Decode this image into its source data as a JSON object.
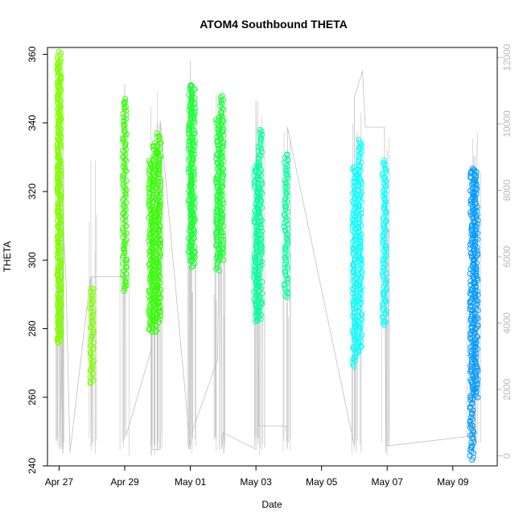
{
  "chart_data": {
    "type": "scatter",
    "title": "ATOM4 Southbound THETA",
    "xlabel": "Date",
    "ylabel": "THETA",
    "x_ticks": [
      "Apr 27",
      "Apr 29",
      "May 01",
      "May 03",
      "May 05",
      "May 07",
      "May 09"
    ],
    "y_ticks": [
      "240",
      "260",
      "280",
      "300",
      "320",
      "340",
      "360"
    ],
    "y2_ticks": [
      "0",
      "2000",
      "4000",
      "6000",
      "8000",
      "10000",
      "12000"
    ],
    "ylim": [
      240,
      362
    ],
    "y2lim": [
      -300,
      12300
    ],
    "xlim": [
      "2013-04-26T15:30",
      "2013-05-10T08:30"
    ],
    "grid": false,
    "legend": "none",
    "colors": {
      "right_axis": "#b8b8b8",
      "secondary_series": "#c0c0c0"
    },
    "series": [
      {
        "color": "#80ff00",
        "segments": [
          {
            "t": "2013-04-27T00:00",
            "ymin": 276,
            "ymax": 361
          },
          {
            "t": "2013-04-27T00:20",
            "ymin": 276,
            "ymax": 358
          },
          {
            "t": "2013-04-28T00:00",
            "ymin": 264,
            "ymax": 292
          }
        ]
      },
      {
        "color": "#33ff00",
        "segments": [
          {
            "t": "2013-04-29T00:00",
            "ymin": 291,
            "ymax": 347
          },
          {
            "t": "2013-04-29T19:00",
            "ymin": 279,
            "ymax": 329
          },
          {
            "t": "2013-04-29T22:00",
            "ymin": 279,
            "ymax": 334
          },
          {
            "t": "2013-04-30T01:00",
            "ymin": 282,
            "ymax": 337
          }
        ]
      },
      {
        "color": "#1aff33",
        "segments": [
          {
            "t": "2013-05-01T00:00",
            "ymin": 300,
            "ymax": 351
          },
          {
            "t": "2013-05-01T02:00",
            "ymin": 298,
            "ymax": 351
          },
          {
            "t": "2013-05-01T20:00",
            "ymin": 297,
            "ymax": 342
          },
          {
            "t": "2013-05-01T23:00",
            "ymin": 300,
            "ymax": 348
          }
        ]
      },
      {
        "color": "#00ff99",
        "segments": [
          {
            "t": "2013-05-03T00:00",
            "ymin": 282,
            "ymax": 328
          },
          {
            "t": "2013-05-03T03:00",
            "ymin": 283,
            "ymax": 338
          },
          {
            "t": "2013-05-03T22:00",
            "ymin": 289,
            "ymax": 331
          }
        ]
      },
      {
        "color": "#00ffff",
        "segments": [
          {
            "t": "2013-05-06T00:00",
            "ymin": 269,
            "ymax": 327
          },
          {
            "t": "2013-05-06T04:00",
            "ymin": 273,
            "ymax": 335
          },
          {
            "t": "2013-05-06T22:00",
            "ymin": 281,
            "ymax": 329
          }
        ]
      },
      {
        "color": "#0099ff",
        "segments": [
          {
            "t": "2013-05-09T14:00",
            "ymin": 242,
            "ymax": 327
          },
          {
            "t": "2013-05-09T17:00",
            "ymin": 260,
            "ymax": 326
          }
        ]
      }
    ],
    "secondary_series": {
      "axis": "right",
      "type": "line",
      "points": [
        [
          "2013-04-27T00:00",
          6000
        ],
        [
          "2013-04-27T00:00",
          11800
        ],
        [
          "2013-04-27T01:00",
          200
        ],
        [
          "2013-04-27T03:00",
          7000
        ],
        [
          "2013-04-27T05:00",
          5400
        ],
        [
          "2013-04-27T08:00",
          100
        ],
        [
          "2013-04-27T23:00",
          5400
        ],
        [
          "2013-04-28T00:00",
          300
        ],
        [
          "2013-04-28T00:00",
          5400
        ],
        [
          "2013-04-29T00:00",
          5400
        ],
        [
          "2013-04-29T00:00",
          11200
        ],
        [
          "2013-04-29T01:00",
          600
        ],
        [
          "2013-04-29T20:00",
          3300
        ],
        [
          "2013-04-29T20:00",
          200
        ],
        [
          "2013-04-30T02:00",
          200
        ],
        [
          "2013-04-30T02:00",
          10100
        ],
        [
          "2013-05-01T00:00",
          200
        ],
        [
          "2013-05-01T00:00",
          11900
        ],
        [
          "2013-05-01T01:00",
          700
        ],
        [
          "2013-05-01T20:00",
          2900
        ],
        [
          "2013-05-01T22:00",
          10800
        ],
        [
          "2013-05-01T23:00",
          200
        ],
        [
          "2013-05-02T00:00",
          700
        ],
        [
          "2013-05-03T00:00",
          200
        ],
        [
          "2013-05-03T00:00",
          10700
        ],
        [
          "2013-05-03T02:00",
          900
        ],
        [
          "2013-05-03T22:00",
          900
        ],
        [
          "2013-05-03T23:00",
          200
        ],
        [
          "2013-05-03T23:00",
          9900
        ],
        [
          "2013-05-06T00:00",
          300
        ],
        [
          "2013-05-06T00:00",
          10800
        ],
        [
          "2013-05-06T06:00",
          11600
        ],
        [
          "2013-05-06T08:00",
          9900
        ],
        [
          "2013-05-06T22:00",
          9900
        ],
        [
          "2013-05-06T23:00",
          100
        ],
        [
          "2013-05-07T00:00",
          9200
        ],
        [
          "2013-05-07T00:00",
          300
        ],
        [
          "2013-05-09T14:00",
          600
        ],
        [
          "2013-05-09T18:00",
          9700
        ]
      ]
    }
  }
}
